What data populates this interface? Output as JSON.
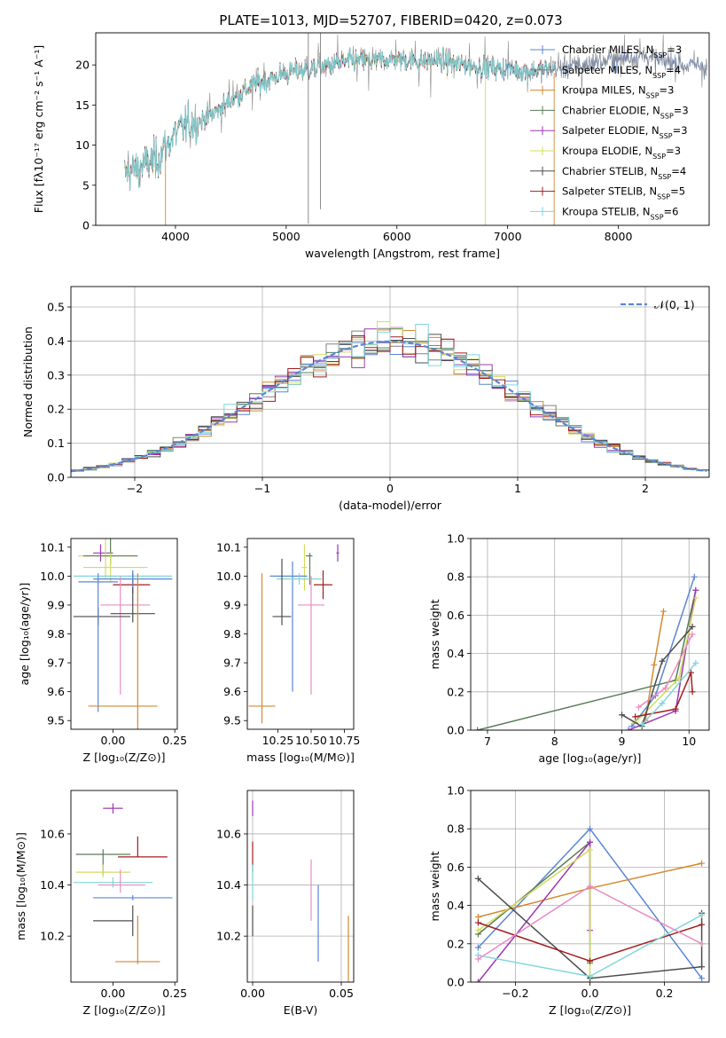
{
  "figure": {
    "title": "PLATE=1013, MJD=52707, FIBERID=0420, z=0.073"
  },
  "chart_data": [
    {
      "id": "spectrum",
      "type": "line",
      "xlabel": "wavelength [Angstrom, rest frame]",
      "ylabel": "Flux [fλ10⁻¹⁷ erg cm⁻² s⁻¹ A⁻¹]",
      "xlim": [
        3280,
        8820
      ],
      "ylim": [
        0,
        24
      ],
      "xticks": [
        4000,
        5000,
        6000,
        7000,
        8000
      ],
      "yticks": [
        0,
        5,
        10,
        15,
        20
      ],
      "legend_position": "top-right",
      "series": [
        {
          "name": "Chabrier MILES, N_SSP=3",
          "color": "#5b86d4"
        },
        {
          "name": "Salpeter MILES, N_SSP=4",
          "color": "#808080"
        },
        {
          "name": "Kroupa MILES, N_SSP=3",
          "color": "#d4892f"
        },
        {
          "name": "Chabrier ELODIE, N_SSP=3",
          "color": "#597d59"
        },
        {
          "name": "Salpeter ELODIE, N_SSP=3",
          "color": "#9b38b5"
        },
        {
          "name": "Kroupa ELODIE, N_SSP=3",
          "color": "#d4dc5e"
        },
        {
          "name": "Chabrier STELIB, N_SSP=4",
          "color": "#4d4d4d"
        },
        {
          "name": "Salpeter STELIB, N_SSP=5",
          "color": "#a21d1d"
        },
        {
          "name": "Kroupa STELIB, N_SSP=6",
          "color": "#7fd6d9"
        }
      ],
      "continuum_points": [
        [
          3550,
          6.5
        ],
        [
          3700,
          7.5
        ],
        [
          3850,
          8.5
        ],
        [
          3950,
          10.5
        ],
        [
          4000,
          11.5
        ],
        [
          4100,
          12.5
        ],
        [
          4300,
          13.5
        ],
        [
          4500,
          15.5
        ],
        [
          4700,
          17.5
        ],
        [
          4850,
          18.2
        ],
        [
          5000,
          19.0
        ],
        [
          5200,
          19.5
        ],
        [
          5400,
          20.0
        ],
        [
          5600,
          20.5
        ],
        [
          5800,
          20.5
        ],
        [
          6000,
          20.8
        ],
        [
          6200,
          20.5
        ],
        [
          6400,
          20.5
        ],
        [
          6600,
          20.0
        ],
        [
          6800,
          19.7
        ],
        [
          7000,
          19.5
        ],
        [
          7200,
          19.2
        ],
        [
          7400,
          19.5
        ],
        [
          7600,
          19.8
        ],
        [
          7800,
          20.3
        ],
        [
          8000,
          20.7
        ],
        [
          8200,
          21.2
        ],
        [
          8400,
          20.5
        ],
        [
          8600,
          20.0
        ],
        [
          8800,
          19.8
        ]
      ]
    },
    {
      "id": "residuals",
      "type": "histogram",
      "xlabel": "(data-model)/error",
      "ylabel": "Normed distribution",
      "xlim": [
        -2.5,
        2.5
      ],
      "ylim": [
        0,
        0.56
      ],
      "xticks": [
        -2,
        -1,
        0,
        1,
        2
      ],
      "yticks": [
        0.0,
        0.1,
        0.2,
        0.3,
        0.4,
        0.5
      ],
      "grid": true,
      "legend": "𝒩(0, 1)",
      "legend_position": "top-right"
    },
    {
      "id": "age_vs_z",
      "type": "scatter",
      "xlabel": "Z [log₁₀(Z/Z⊙)]",
      "ylabel": "age  [log₁₀(age/yr)]",
      "xlim": [
        -0.17,
        0.26
      ],
      "ylim": [
        9.47,
        10.13
      ],
      "xticks": [
        0.0,
        0.25
      ],
      "yticks": [
        9.5,
        9.6,
        9.7,
        9.8,
        9.9,
        10.0,
        10.1
      ],
      "points": [
        {
          "x": -0.05,
          "y": 10.08,
          "xerr": [
            0.03,
            0.05
          ],
          "yerr": [
            0.03,
            0.03
          ],
          "color": "#9b38b5"
        },
        {
          "x": -0.03,
          "y": 10.07,
          "xerr": [
            0.11,
            0.13
          ],
          "yerr": [
            0.08,
            0.08
          ],
          "color": "#d4dc5e"
        },
        {
          "x": -0.01,
          "y": 10.07,
          "xerr": [
            0.11,
            0.11
          ],
          "yerr": [
            0.03,
            0.06
          ],
          "color": "#597d59"
        },
        {
          "x": -0.01,
          "y": 10.03,
          "xerr": [
            0.11,
            0.15
          ],
          "yerr": [
            0.05,
            0.05
          ],
          "color": "#d4dc5e"
        },
        {
          "x": 0.08,
          "y": 10.0,
          "xerr": [
            0.24,
            0.16
          ],
          "yerr": [
            0.02,
            0.02
          ],
          "color": "#7fd6d9"
        },
        {
          "x": 0.08,
          "y": 9.97,
          "xerr": [
            0.08,
            0.07
          ],
          "yerr": [
            0.03,
            0.04
          ],
          "color": "#a21d1d"
        },
        {
          "x": 0.08,
          "y": 9.99,
          "xerr": [
            0.16,
            0.16
          ],
          "yerr": [
            0.03,
            0.03
          ],
          "color": "#5b86d4"
        },
        {
          "x": 0.03,
          "y": 9.9,
          "xerr": [
            0.08,
            0.12
          ],
          "yerr": [
            0.31,
            0.1
          ],
          "color": "#e88cc4"
        },
        {
          "x": 0.08,
          "y": 9.87,
          "xerr": [
            0.09,
            0.09
          ],
          "yerr": [
            0.03,
            0.09
          ],
          "color": "#4d4d4d"
        },
        {
          "x": -0.06,
          "y": 9.86,
          "xerr": [
            0.1,
            0.13
          ],
          "yerr": [
            0.03,
            0.03
          ],
          "color": "#4d4d4d"
        },
        {
          "x": -0.06,
          "y": 9.98,
          "xerr": [
            0.08,
            0.08
          ],
          "yerr": [
            0.45,
            0.03
          ],
          "color": "#5b86d4"
        },
        {
          "x": 0.1,
          "y": 9.55,
          "xerr": [
            0.2,
            0.08
          ],
          "yerr": [
            0.08,
            0.46
          ],
          "color": "#d4892f"
        }
      ]
    },
    {
      "id": "age_vs_mass",
      "type": "scatter",
      "xlabel": "mass [log₁₀(M/M⊙)]",
      "ylabel": "",
      "xlim": [
        10.02,
        10.82
      ],
      "ylim": [
        9.47,
        10.13
      ],
      "xticks": [
        10.25,
        10.5,
        10.75
      ],
      "yticks": [
        9.5,
        9.6,
        9.7,
        9.8,
        9.9,
        10.0,
        10.1
      ],
      "points": [
        {
          "x": 10.7,
          "y": 10.08,
          "xerr": [
            0.01,
            0.01
          ],
          "yerr": [
            0.03,
            0.03
          ],
          "color": "#9b38b5"
        },
        {
          "x": 10.49,
          "y": 10.07,
          "xerr": [
            0.03,
            0.02
          ],
          "yerr": [
            0.1,
            0.01
          ],
          "color": "#597d59"
        },
        {
          "x": 10.45,
          "y": 10.03,
          "xerr": [
            0.02,
            0.02
          ],
          "yerr": [
            0.08,
            0.08
          ],
          "color": "#d4dc5e"
        },
        {
          "x": 10.36,
          "y": 10.0,
          "xerr": [
            0.17,
            0.11
          ],
          "yerr": [
            0.4,
            0.05
          ],
          "color": "#5b86d4"
        },
        {
          "x": 10.41,
          "y": 9.99,
          "xerr": [
            0.17,
            0.17
          ],
          "yerr": [
            0.02,
            0.02
          ],
          "color": "#7fd6d9"
        },
        {
          "x": 10.59,
          "y": 9.97,
          "xerr": [
            0.07,
            0.07
          ],
          "yerr": [
            0.05,
            0.05
          ],
          "color": "#a21d1d"
        },
        {
          "x": 10.5,
          "y": 9.9,
          "xerr": [
            0.1,
            0.1
          ],
          "yerr": [
            0.31,
            0.1
          ],
          "color": "#e88cc4"
        },
        {
          "x": 10.28,
          "y": 9.86,
          "xerr": [
            0.07,
            0.07
          ],
          "yerr": [
            0.03,
            0.2
          ],
          "color": "#4d4d4d"
        },
        {
          "x": 10.13,
          "y": 9.55,
          "xerr": [
            0.1,
            0.1
          ],
          "yerr": [
            0.06,
            0.46
          ],
          "color": "#d4892f"
        }
      ]
    },
    {
      "id": "mass_weight_vs_age",
      "type": "line",
      "xlabel": "age  [log₁₀(age/yr)]",
      "ylabel": "mass weight",
      "xlim": [
        6.75,
        10.3
      ],
      "ylim": [
        0,
        1
      ],
      "xticks": [
        7,
        8,
        9,
        10
      ],
      "yticks": [
        0.0,
        0.2,
        0.4,
        0.6,
        0.8,
        1.0
      ],
      "grid": true,
      "series": [
        {
          "color": "#5b86d4",
          "x": [
            9.15,
            9.5,
            10.08
          ],
          "y": [
            0.02,
            0.18,
            0.8
          ]
        },
        {
          "color": "#d4892f",
          "x": [
            9.35,
            9.48,
            9.62
          ],
          "y": [
            0.05,
            0.34,
            0.62
          ]
        },
        {
          "color": "#597d59",
          "x": [
            6.85,
            9.8,
            10.1
          ],
          "y": [
            0.0,
            0.26,
            0.73
          ]
        },
        {
          "color": "#9b38b5",
          "x": [
            9.1,
            9.8,
            10.1
          ],
          "y": [
            0.0,
            0.1,
            0.73
          ]
        },
        {
          "color": "#d4dc5e",
          "x": [
            9.2,
            9.85,
            10.1
          ],
          "y": [
            0.04,
            0.27,
            0.69
          ]
        },
        {
          "color": "#4d4d4d",
          "x": [
            9.0,
            9.3,
            9.6,
            10.05
          ],
          "y": [
            0.08,
            0.02,
            0.36,
            0.54
          ]
        },
        {
          "color": "#a21d1d",
          "x": [
            9.2,
            9.8,
            10.03,
            10.05
          ],
          "y": [
            0.07,
            0.11,
            0.3,
            0.2
          ]
        },
        {
          "color": "#7fd6d9",
          "x": [
            9.3,
            9.6,
            10.1
          ],
          "y": [
            0.03,
            0.14,
            0.35
          ]
        },
        {
          "color": "#e88cc4",
          "x": [
            9.25,
            9.65,
            10.05
          ],
          "y": [
            0.12,
            0.22,
            0.5
          ]
        }
      ]
    },
    {
      "id": "mass_vs_z",
      "type": "scatter",
      "xlabel": "Z [log₁₀(Z/Z⊙)]",
      "ylabel": "mass [log₁₀(M/M⊙)]",
      "xlim": [
        -0.17,
        0.26
      ],
      "ylim": [
        10.02,
        10.77
      ],
      "xticks": [
        0.0,
        0.25
      ],
      "yticks": [
        10.2,
        10.4,
        10.6
      ],
      "points": [
        {
          "x": 0.0,
          "y": 10.7,
          "xerr": [
            0.04,
            0.04
          ],
          "yerr": [
            0.02,
            0.02
          ],
          "color": "#9b38b5"
        },
        {
          "x": 0.1,
          "y": 10.51,
          "xerr": [
            0.08,
            0.12
          ],
          "yerr": [
            0.0,
            0.08
          ],
          "color": "#a21d1d"
        },
        {
          "x": -0.04,
          "y": 10.52,
          "xerr": [
            0.11,
            0.11
          ],
          "yerr": [
            0.08,
            0.02
          ],
          "color": "#597d59"
        },
        {
          "x": -0.04,
          "y": 10.45,
          "xerr": [
            0.11,
            0.11
          ],
          "yerr": [
            0.02,
            0.03
          ],
          "color": "#d4dc5e"
        },
        {
          "x": 0.0,
          "y": 10.41,
          "xerr": [
            0.16,
            0.16
          ],
          "yerr": [
            0.02,
            0.02
          ],
          "color": "#7fd6d9"
        },
        {
          "x": 0.03,
          "y": 10.4,
          "xerr": [
            0.09,
            0.1
          ],
          "yerr": [
            0.03,
            0.06
          ],
          "color": "#e88cc4"
        },
        {
          "x": 0.08,
          "y": 10.35,
          "xerr": [
            0.16,
            0.16
          ],
          "yerr": [
            0.01,
            0.01
          ],
          "color": "#5b86d4"
        },
        {
          "x": 0.08,
          "y": 10.26,
          "xerr": [
            0.16,
            0.0
          ],
          "yerr": [
            0.06,
            0.06
          ],
          "color": "#4d4d4d"
        },
        {
          "x": 0.1,
          "y": 10.1,
          "xerr": [
            0.09,
            0.09
          ],
          "yerr": [
            0.01,
            0.18
          ],
          "color": "#d4892f"
        }
      ]
    },
    {
      "id": "mass_vs_ebv",
      "type": "scatter",
      "xlabel": "E(B-V)",
      "ylabel": "",
      "xlim": [
        -0.003,
        0.057
      ],
      "ylim": [
        10.02,
        10.77
      ],
      "xticks": [
        0.0,
        0.05
      ],
      "yticks": [
        10.2,
        10.4,
        10.6
      ],
      "grid": true,
      "points": [
        {
          "x": 0.0,
          "y": 10.7,
          "yerr": [
            0.03,
            0.03
          ],
          "color": "#9b38b5"
        },
        {
          "x": 0.0,
          "y": 10.51,
          "yerr": [
            0.06,
            0.06
          ],
          "color": "#a21d1d"
        },
        {
          "x": 0.0,
          "y": 10.45,
          "yerr": [
            0.03,
            0.03
          ],
          "color": "#d4dc5e"
        },
        {
          "x": 0.0,
          "y": 10.41,
          "yerr": [
            0.07,
            0.07
          ],
          "color": "#7fd6d9"
        },
        {
          "x": 0.0,
          "y": 10.26,
          "yerr": [
            0.06,
            0.06
          ],
          "color": "#4d4d4d"
        },
        {
          "x": 0.033,
          "y": 10.38,
          "yerr": [
            0.12,
            0.12
          ],
          "color": "#e88cc4"
        },
        {
          "x": 0.037,
          "y": 10.25,
          "yerr": [
            0.15,
            0.15
          ],
          "color": "#5b86d4"
        },
        {
          "x": 0.054,
          "y": 10.15,
          "yerr": [
            0.13,
            0.13
          ],
          "color": "#d4892f"
        }
      ]
    },
    {
      "id": "mass_weight_vs_z",
      "type": "line",
      "xlabel": "Z [log₁₀(Z/Z⊙)]",
      "ylabel": "mass weight",
      "xlim": [
        -0.32,
        0.32
      ],
      "ylim": [
        0,
        1
      ],
      "xticks": [
        -0.2,
        0.0,
        0.2
      ],
      "yticks": [
        0.0,
        0.2,
        0.4,
        0.6,
        0.8,
        1.0
      ],
      "grid": true,
      "series": [
        {
          "color": "#5b86d4",
          "x": [
            -0.3,
            0.0,
            0.3
          ],
          "y": [
            0.18,
            0.8,
            0.02
          ]
        },
        {
          "color": "#d4892f",
          "x": [
            -0.3,
            0.0,
            0.3
          ],
          "y": [
            0.34,
            0.49,
            0.62
          ]
        },
        {
          "color": "#597d59",
          "x": [
            -0.3,
            0.0,
            0.0
          ],
          "y": [
            0.25,
            0.73,
            0.1
          ]
        },
        {
          "color": "#9b38b5",
          "x": [
            -0.3,
            0.0,
            0.0
          ],
          "y": [
            0.0,
            0.73,
            0.27
          ]
        },
        {
          "color": "#d4dc5e",
          "x": [
            -0.3,
            0.0,
            0.0
          ],
          "y": [
            0.27,
            0.69,
            0.0
          ]
        },
        {
          "color": "#4d4d4d",
          "x": [
            -0.3,
            0.0,
            0.3,
            0.3
          ],
          "y": [
            0.54,
            0.02,
            0.08,
            0.36
          ]
        },
        {
          "color": "#a21d1d",
          "x": [
            -0.3,
            0.0,
            0.3
          ],
          "y": [
            0.31,
            0.11,
            0.3
          ]
        },
        {
          "color": "#7fd6d9",
          "x": [
            -0.3,
            0.0,
            0.3
          ],
          "y": [
            0.14,
            0.03,
            0.35
          ]
        },
        {
          "color": "#e88cc4",
          "x": [
            -0.3,
            0.0,
            0.3
          ],
          "y": [
            0.12,
            0.5,
            0.2
          ]
        }
      ]
    }
  ]
}
